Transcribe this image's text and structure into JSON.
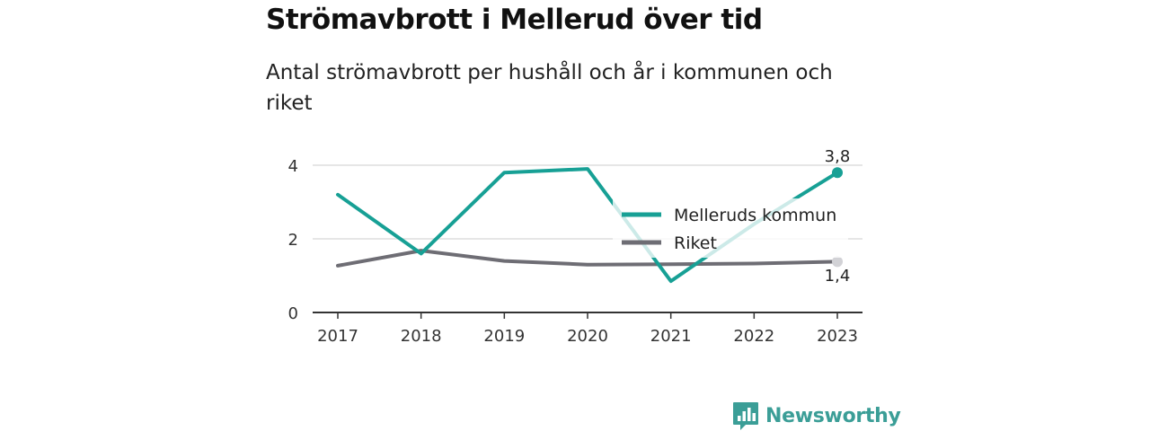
{
  "header": {
    "title": "Strömavbrott i Mellerud över tid",
    "subtitle": "Antal strömavbrott per hushåll och år i kommunen och riket"
  },
  "brand": {
    "name": "Newsworthy",
    "color": "#3b9e97",
    "icon": "newsworthy-logo-icon"
  },
  "colors": {
    "kommun": "#17a095",
    "riket": "#6e6d74",
    "gridline": "#dddddd",
    "axis": "#333333"
  },
  "chart_data": {
    "type": "line",
    "x": [
      "2017",
      "2018",
      "2019",
      "2020",
      "2021",
      "2022",
      "2023"
    ],
    "y_ticks": [
      "0",
      "2",
      "4"
    ],
    "ylim": [
      0,
      4.5
    ],
    "grid": true,
    "legend": "inside-right",
    "series": [
      {
        "name": "Melleruds kommun",
        "values": [
          3.2,
          1.6,
          3.8,
          3.9,
          0.85,
          2.4,
          3.8
        ],
        "end_label": "3,8"
      },
      {
        "name": "Riket",
        "values": [
          1.27,
          1.68,
          1.4,
          1.3,
          1.31,
          1.33,
          1.38
        ],
        "end_label": "1,4"
      }
    ]
  }
}
